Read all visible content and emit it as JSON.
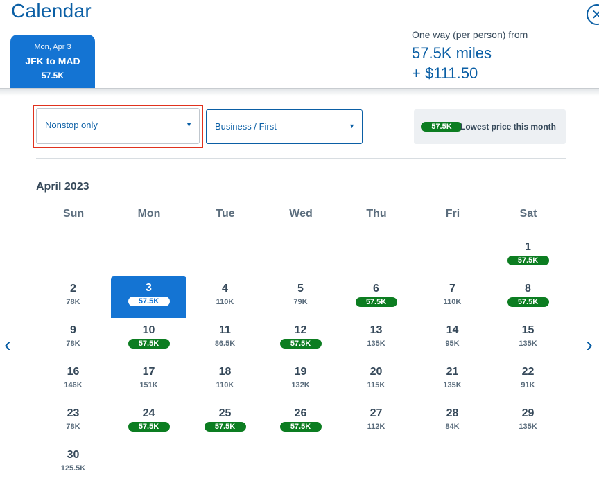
{
  "page": {
    "title": "Calendar"
  },
  "flight_tab": {
    "date": "Mon, Apr 3",
    "route": "JFK to MAD",
    "price": "57.5K"
  },
  "fare": {
    "label": "One way (per person) from",
    "miles": "57.5K miles",
    "cash": "+ $111.50"
  },
  "filters": {
    "stops": "Nonstop only",
    "cabin": "Business / First"
  },
  "legend": {
    "pill": "57.5K",
    "text": "Lowest price this month"
  },
  "calendar": {
    "month": "April 2023",
    "weekdays": [
      "Sun",
      "Mon",
      "Tue",
      "Wed",
      "Thu",
      "Fri",
      "Sat"
    ],
    "first_weekday_index": 6,
    "selected_day": 3,
    "days": [
      {
        "day": "1",
        "price": "57.5K",
        "lowest": true
      },
      {
        "day": "2",
        "price": "78K",
        "lowest": false
      },
      {
        "day": "3",
        "price": "57.5K",
        "lowest": true
      },
      {
        "day": "4",
        "price": "110K",
        "lowest": false
      },
      {
        "day": "5",
        "price": "79K",
        "lowest": false
      },
      {
        "day": "6",
        "price": "57.5K",
        "lowest": true
      },
      {
        "day": "7",
        "price": "110K",
        "lowest": false
      },
      {
        "day": "8",
        "price": "57.5K",
        "lowest": true
      },
      {
        "day": "9",
        "price": "78K",
        "lowest": false
      },
      {
        "day": "10",
        "price": "57.5K",
        "lowest": true
      },
      {
        "day": "11",
        "price": "86.5K",
        "lowest": false
      },
      {
        "day": "12",
        "price": "57.5K",
        "lowest": true
      },
      {
        "day": "13",
        "price": "135K",
        "lowest": false
      },
      {
        "day": "14",
        "price": "95K",
        "lowest": false
      },
      {
        "day": "15",
        "price": "135K",
        "lowest": false
      },
      {
        "day": "16",
        "price": "146K",
        "lowest": false
      },
      {
        "day": "17",
        "price": "151K",
        "lowest": false
      },
      {
        "day": "18",
        "price": "110K",
        "lowest": false
      },
      {
        "day": "19",
        "price": "132K",
        "lowest": false
      },
      {
        "day": "20",
        "price": "115K",
        "lowest": false
      },
      {
        "day": "21",
        "price": "135K",
        "lowest": false
      },
      {
        "day": "22",
        "price": "91K",
        "lowest": false
      },
      {
        "day": "23",
        "price": "78K",
        "lowest": false
      },
      {
        "day": "24",
        "price": "57.5K",
        "lowest": true
      },
      {
        "day": "25",
        "price": "57.5K",
        "lowest": true
      },
      {
        "day": "26",
        "price": "57.5K",
        "lowest": true
      },
      {
        "day": "27",
        "price": "112K",
        "lowest": false
      },
      {
        "day": "28",
        "price": "84K",
        "lowest": false
      },
      {
        "day": "29",
        "price": "135K",
        "lowest": false
      },
      {
        "day": "30",
        "price": "125.5K",
        "lowest": false
      }
    ]
  },
  "icons": {
    "close": "close-icon",
    "prev": "chevron-left-icon",
    "next": "chevron-right-icon",
    "dropdown": "caret-down-icon"
  }
}
